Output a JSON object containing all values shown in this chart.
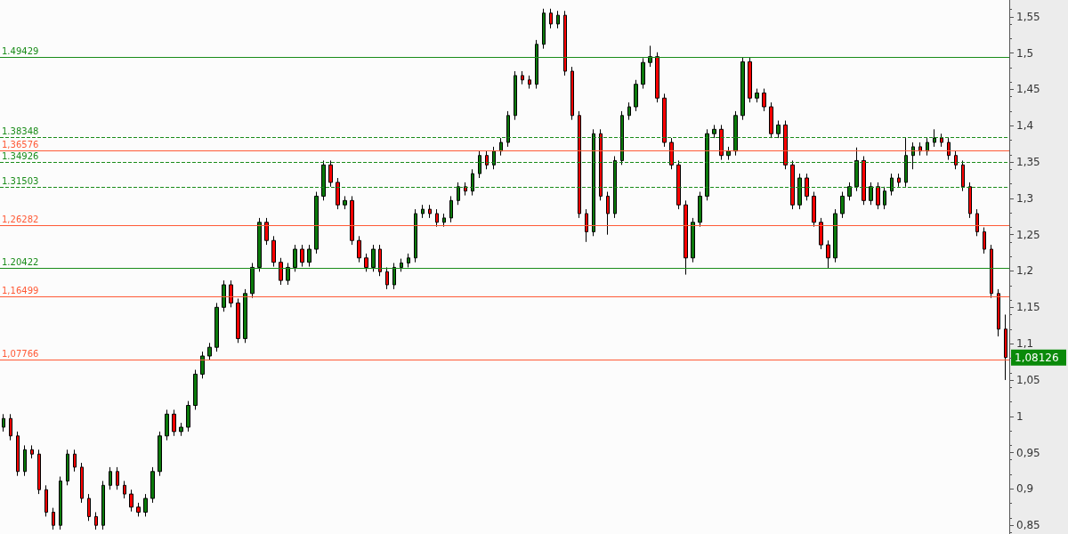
{
  "chart_data": {
    "type": "candlestick",
    "categories": [
      null,
      null,
      null,
      null,
      null,
      null,
      null,
      null,
      null,
      null,
      null,
      null,
      null,
      null,
      null,
      null,
      null,
      null,
      null,
      null,
      null,
      null,
      null,
      null,
      null,
      null,
      null,
      null,
      null,
      null,
      null,
      null,
      null,
      null,
      null,
      null,
      null,
      null,
      null,
      null,
      null,
      null,
      null,
      null,
      null,
      null,
      null,
      null,
      null,
      null,
      null,
      null,
      null,
      null,
      null,
      null,
      null,
      null,
      null,
      null,
      null,
      null,
      null,
      null,
      null,
      null,
      null,
      null,
      null,
      null,
      null,
      null,
      null,
      null,
      null,
      null,
      null,
      null,
      null,
      null,
      null,
      null,
      null,
      null,
      null,
      null,
      null,
      null,
      null,
      null,
      null,
      null,
      null,
      null,
      null,
      null,
      null,
      null,
      null,
      null,
      null,
      null,
      null,
      null,
      null,
      null,
      null,
      null,
      null,
      null,
      null,
      null,
      null,
      null,
      null,
      null,
      null,
      null,
      null,
      null,
      null,
      null,
      null,
      null,
      null,
      null,
      null,
      null,
      null,
      null,
      null,
      null,
      null,
      null,
      null,
      null,
      null,
      null,
      null,
      null,
      null,
      null
    ],
    "ohlc": [
      [
        0.985,
        1.003,
        0.979,
        0.997
      ],
      [
        0.997,
        1.003,
        0.967,
        0.973
      ],
      [
        0.973,
        0.979,
        0.918,
        0.924
      ],
      [
        0.924,
        0.96,
        0.918,
        0.954
      ],
      [
        0.954,
        0.96,
        0.942,
        0.948
      ],
      [
        0.948,
        0.954,
        0.893,
        0.899
      ],
      [
        0.899,
        0.905,
        0.862,
        0.868
      ],
      [
        0.868,
        0.874,
        0.844,
        0.85
      ],
      [
        0.85,
        0.917,
        0.844,
        0.911
      ],
      [
        0.911,
        0.954,
        0.905,
        0.948
      ],
      [
        0.948,
        0.954,
        0.924,
        0.93
      ],
      [
        0.93,
        0.936,
        0.881,
        0.887
      ],
      [
        0.887,
        0.893,
        0.856,
        0.862
      ],
      [
        0.862,
        0.868,
        0.844,
        0.85
      ],
      [
        0.85,
        0.911,
        0.844,
        0.905
      ],
      [
        0.905,
        0.93,
        0.899,
        0.924
      ],
      [
        0.924,
        0.93,
        0.899,
        0.905
      ],
      [
        0.905,
        0.911,
        0.887,
        0.893
      ],
      [
        0.893,
        0.899,
        0.869,
        0.875
      ],
      [
        0.875,
        0.881,
        0.862,
        0.868
      ],
      [
        0.868,
        0.893,
        0.862,
        0.887
      ],
      [
        0.887,
        0.93,
        0.881,
        0.924
      ],
      [
        0.924,
        0.979,
        0.918,
        0.973
      ],
      [
        0.973,
        1.009,
        0.967,
        1.003
      ],
      [
        1.003,
        1.009,
        0.973,
        0.979
      ],
      [
        0.979,
        0.991,
        0.973,
        0.985
      ],
      [
        0.985,
        1.021,
        0.979,
        1.015
      ],
      [
        1.015,
        1.064,
        1.009,
        1.058
      ],
      [
        1.058,
        1.089,
        1.052,
        1.083
      ],
      [
        1.083,
        1.101,
        1.077,
        1.095
      ],
      [
        1.095,
        1.156,
        1.089,
        1.15
      ],
      [
        1.15,
        1.187,
        1.144,
        1.181
      ],
      [
        1.181,
        1.187,
        1.15,
        1.156
      ],
      [
        1.156,
        1.162,
        1.101,
        1.107
      ],
      [
        1.107,
        1.175,
        1.101,
        1.169
      ],
      [
        1.169,
        1.211,
        1.163,
        1.205
      ],
      [
        1.205,
        1.273,
        1.199,
        1.267
      ],
      [
        1.267,
        1.273,
        1.236,
        1.242
      ],
      [
        1.242,
        1.248,
        1.206,
        1.212
      ],
      [
        1.212,
        1.218,
        1.181,
        1.187
      ],
      [
        1.187,
        1.211,
        1.181,
        1.205
      ],
      [
        1.205,
        1.236,
        1.199,
        1.23
      ],
      [
        1.23,
        1.236,
        1.206,
        1.212
      ],
      [
        1.212,
        1.236,
        1.206,
        1.23
      ],
      [
        1.23,
        1.309,
        1.224,
        1.303
      ],
      [
        1.303,
        1.352,
        1.297,
        1.346
      ],
      [
        1.346,
        1.352,
        1.316,
        1.322
      ],
      [
        1.322,
        1.328,
        1.285,
        1.291
      ],
      [
        1.291,
        1.303,
        1.285,
        1.297
      ],
      [
        1.297,
        1.303,
        1.236,
        1.242
      ],
      [
        1.242,
        1.248,
        1.212,
        1.218
      ],
      [
        1.218,
        1.224,
        1.199,
        1.205
      ],
      [
        1.205,
        1.236,
        1.199,
        1.23
      ],
      [
        1.23,
        1.236,
        1.193,
        1.199
      ],
      [
        1.199,
        1.205,
        1.175,
        1.181
      ],
      [
        1.181,
        1.211,
        1.175,
        1.205
      ],
      [
        1.205,
        1.217,
        1.199,
        1.211
      ],
      [
        1.211,
        1.224,
        1.205,
        1.218
      ],
      [
        1.218,
        1.285,
        1.212,
        1.279
      ],
      [
        1.279,
        1.291,
        1.273,
        1.285
      ],
      [
        1.285,
        1.291,
        1.273,
        1.279
      ],
      [
        1.279,
        1.285,
        1.261,
        1.267
      ],
      [
        1.267,
        1.279,
        1.261,
        1.273
      ],
      [
        1.273,
        1.303,
        1.267,
        1.297
      ],
      [
        1.297,
        1.322,
        1.291,
        1.316
      ],
      [
        1.316,
        1.322,
        1.304,
        1.31
      ],
      [
        1.31,
        1.34,
        1.304,
        1.334
      ],
      [
        1.334,
        1.365,
        1.328,
        1.359
      ],
      [
        1.359,
        1.365,
        1.34,
        1.346
      ],
      [
        1.346,
        1.371,
        1.34,
        1.365
      ],
      [
        1.365,
        1.383,
        1.359,
        1.377
      ],
      [
        1.377,
        1.42,
        1.371,
        1.414
      ],
      [
        1.414,
        1.475,
        1.408,
        1.469
      ],
      [
        1.469,
        1.475,
        1.457,
        1.463
      ],
      [
        1.463,
        1.469,
        1.451,
        1.457
      ],
      [
        1.457,
        1.518,
        1.451,
        1.512
      ],
      [
        1.512,
        1.561,
        1.506,
        1.555
      ],
      [
        1.555,
        1.561,
        1.534,
        1.54
      ],
      [
        1.54,
        1.558,
        1.534,
        1.552
      ],
      [
        1.552,
        1.558,
        1.469,
        1.475
      ],
      [
        1.475,
        1.481,
        1.408,
        1.414
      ],
      [
        1.414,
        1.42,
        1.273,
        1.279
      ],
      [
        1.279,
        1.285,
        1.24,
        1.254
      ],
      [
        1.254,
        1.395,
        1.248,
        1.389
      ],
      [
        1.389,
        1.395,
        1.297,
        1.303
      ],
      [
        1.303,
        1.309,
        1.25,
        1.279
      ],
      [
        1.279,
        1.358,
        1.273,
        1.352
      ],
      [
        1.352,
        1.42,
        1.346,
        1.414
      ],
      [
        1.414,
        1.432,
        1.408,
        1.426
      ],
      [
        1.426,
        1.463,
        1.42,
        1.457
      ],
      [
        1.457,
        1.493,
        1.451,
        1.487
      ],
      [
        1.487,
        1.51,
        1.481,
        1.495
      ],
      [
        1.495,
        1.501,
        1.432,
        1.438
      ],
      [
        1.438,
        1.444,
        1.371,
        1.377
      ],
      [
        1.377,
        1.383,
        1.34,
        1.346
      ],
      [
        1.346,
        1.352,
        1.285,
        1.291
      ],
      [
        1.291,
        1.297,
        1.195,
        1.218
      ],
      [
        1.218,
        1.273,
        1.212,
        1.267
      ],
      [
        1.267,
        1.309,
        1.261,
        1.303
      ],
      [
        1.303,
        1.395,
        1.297,
        1.389
      ],
      [
        1.389,
        1.401,
        1.383,
        1.395
      ],
      [
        1.395,
        1.401,
        1.353,
        1.359
      ],
      [
        1.359,
        1.371,
        1.353,
        1.365
      ],
      [
        1.365,
        1.42,
        1.359,
        1.414
      ],
      [
        1.414,
        1.494,
        1.408,
        1.488
      ],
      [
        1.488,
        1.494,
        1.432,
        1.438
      ],
      [
        1.438,
        1.451,
        1.432,
        1.445
      ],
      [
        1.445,
        1.451,
        1.42,
        1.426
      ],
      [
        1.426,
        1.432,
        1.383,
        1.389
      ],
      [
        1.389,
        1.407,
        1.383,
        1.401
      ],
      [
        1.401,
        1.407,
        1.34,
        1.346
      ],
      [
        1.346,
        1.352,
        1.285,
        1.291
      ],
      [
        1.291,
        1.334,
        1.285,
        1.328
      ],
      [
        1.328,
        1.334,
        1.297,
        1.303
      ],
      [
        1.303,
        1.309,
        1.261,
        1.267
      ],
      [
        1.267,
        1.273,
        1.23,
        1.236
      ],
      [
        1.236,
        1.242,
        1.204,
        1.218
      ],
      [
        1.218,
        1.285,
        1.212,
        1.279
      ],
      [
        1.279,
        1.309,
        1.273,
        1.303
      ],
      [
        1.303,
        1.322,
        1.297,
        1.316
      ],
      [
        1.316,
        1.37,
        1.31,
        1.352
      ],
      [
        1.352,
        1.358,
        1.291,
        1.297
      ],
      [
        1.297,
        1.322,
        1.291,
        1.316
      ],
      [
        1.316,
        1.322,
        1.285,
        1.291
      ],
      [
        1.291,
        1.316,
        1.285,
        1.31
      ],
      [
        1.31,
        1.334,
        1.304,
        1.328
      ],
      [
        1.328,
        1.334,
        1.316,
        1.322
      ],
      [
        1.322,
        1.383,
        1.316,
        1.359
      ],
      [
        1.359,
        1.377,
        1.34,
        1.371
      ],
      [
        1.371,
        1.377,
        1.359,
        1.365
      ],
      [
        1.365,
        1.383,
        1.359,
        1.377
      ],
      [
        1.377,
        1.395,
        1.371,
        1.383
      ],
      [
        1.383,
        1.389,
        1.371,
        1.377
      ],
      [
        1.377,
        1.383,
        1.353,
        1.359
      ],
      [
        1.359,
        1.365,
        1.34,
        1.346
      ],
      [
        1.346,
        1.352,
        1.31,
        1.316
      ],
      [
        1.316,
        1.322,
        1.273,
        1.279
      ],
      [
        1.279,
        1.285,
        1.248,
        1.254
      ],
      [
        1.254,
        1.26,
        1.224,
        1.23
      ],
      [
        1.23,
        1.236,
        1.163,
        1.169
      ],
      [
        1.169,
        1.175,
        1.11,
        1.12
      ],
      [
        1.12,
        1.14,
        1.05,
        1.081
      ]
    ],
    "ylim": [
      0.838,
      1.573
    ],
    "yticks": [
      {
        "value": 0.85,
        "label": "0,85"
      },
      {
        "value": 0.9,
        "label": "0,9"
      },
      {
        "value": 0.95,
        "label": "0,95"
      },
      {
        "value": 1,
        "label": "1"
      },
      {
        "value": 1.05,
        "label": "1,05"
      },
      {
        "value": 1.1,
        "label": "1,1"
      },
      {
        "value": 1.15,
        "label": "1,15"
      },
      {
        "value": 1.2,
        "label": "1,2"
      },
      {
        "value": 1.25,
        "label": "1,25"
      },
      {
        "value": 1.3,
        "label": "1,3"
      },
      {
        "value": 1.35,
        "label": "1,35"
      },
      {
        "value": 1.4,
        "label": "1,4"
      },
      {
        "value": 1.45,
        "label": "1,45"
      },
      {
        "value": 1.5,
        "label": "1,5"
      },
      {
        "value": 1.55,
        "label": "1,55"
      }
    ],
    "ref_lines": [
      {
        "axis": "y",
        "value": 1.36576,
        "label": "1,36576",
        "color": "#ff5a36",
        "line_style": "solid"
      },
      {
        "axis": "y",
        "value": 1.26282,
        "label": "1,26282",
        "color": "#ff5a36",
        "line_style": "solid"
      },
      {
        "axis": "y",
        "value": 1.16499,
        "label": "1,16499",
        "color": "#ff5a36",
        "line_style": "solid"
      },
      {
        "axis": "y",
        "value": 1.07766,
        "label": "1,07766",
        "color": "#ff5a36",
        "line_style": "solid"
      },
      {
        "axis": "y",
        "value": 1.49429,
        "label": "1.49429",
        "color": "#1a8c1a",
        "line_style": "solid"
      },
      {
        "axis": "y",
        "value": 1.38348,
        "label": "1.38348",
        "color": "#1a8c1a",
        "line_style": "dashed"
      },
      {
        "axis": "y",
        "value": 1.34926,
        "label": "1.34926",
        "color": "#1a8c1a",
        "line_style": "dashed"
      },
      {
        "axis": "y",
        "value": 1.31503,
        "label": "1.31503",
        "color": "#1a8c1a",
        "line_style": "dashed"
      },
      {
        "axis": "y",
        "value": 1.20422,
        "label": "1.20422",
        "color": "#1a8c1a",
        "line_style": "solid"
      }
    ],
    "annotations": [
      "1,08126"
    ],
    "grid": false,
    "tick_labels": "y"
  }
}
